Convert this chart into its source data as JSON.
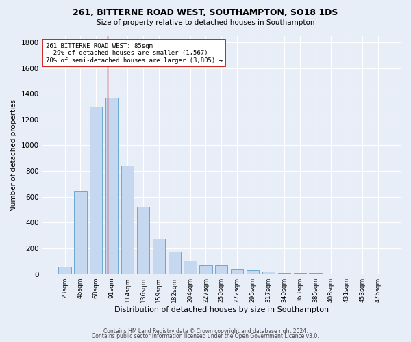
{
  "title_line1": "261, BITTERNE ROAD WEST, SOUTHAMPTON, SO18 1DS",
  "title_line2": "Size of property relative to detached houses in Southampton",
  "xlabel": "Distribution of detached houses by size in Southampton",
  "ylabel": "Number of detached properties",
  "footer_line1": "Contains HM Land Registry data © Crown copyright and database right 2024.",
  "footer_line2": "Contains public sector information licensed under the Open Government Licence v3.0.",
  "bar_labels": [
    "23sqm",
    "46sqm",
    "68sqm",
    "91sqm",
    "114sqm",
    "136sqm",
    "159sqm",
    "182sqm",
    "204sqm",
    "227sqm",
    "250sqm",
    "272sqm",
    "295sqm",
    "317sqm",
    "340sqm",
    "363sqm",
    "385sqm",
    "408sqm",
    "431sqm",
    "453sqm",
    "476sqm"
  ],
  "bar_values": [
    55,
    645,
    1300,
    1370,
    845,
    525,
    275,
    175,
    105,
    65,
    65,
    35,
    30,
    20,
    8,
    10,
    10,
    0,
    0,
    0,
    0
  ],
  "bar_color": "#c5d8f0",
  "bar_edge_color": "#6aaad4",
  "bar_edge_width": 0.7,
  "bg_color": "#e8eef8",
  "plot_bg_color": "#e8eef8",
  "grid_color": "#ffffff",
  "red_line_x": 2.72,
  "red_line_color": "#cc0000",
  "annotation_text": "261 BITTERNE ROAD WEST: 85sqm\n← 29% of detached houses are smaller (1,567)\n70% of semi-detached houses are larger (3,805) →",
  "annotation_box_color": "#ffffff",
  "annotation_box_edge": "#cc0000",
  "ylim": [
    0,
    1850
  ],
  "yticks": [
    0,
    200,
    400,
    600,
    800,
    1000,
    1200,
    1400,
    1600,
    1800
  ]
}
